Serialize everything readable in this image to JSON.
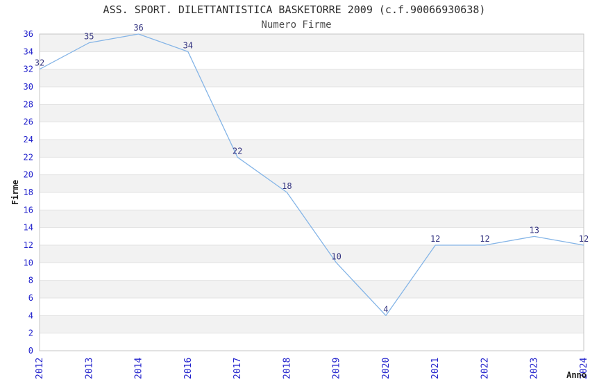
{
  "chart_data": {
    "type": "line",
    "title": "ASS. SPORT. DILETTANTISTICA BASKETORRE 2009 (c.f.90066930638)",
    "subtitle": "Numero Firme",
    "xlabel": "Anno",
    "ylabel": "Firme",
    "categories": [
      "2012",
      "2013",
      "2014",
      "2016",
      "2017",
      "2018",
      "2019",
      "2020",
      "2021",
      "2022",
      "2023",
      "2024"
    ],
    "values": [
      32,
      35,
      36,
      34,
      22,
      18,
      10,
      4,
      12,
      12,
      13,
      12
    ],
    "ylim": [
      0,
      36
    ],
    "ytick_step": 2,
    "grid": "alternating-horizontal-bands",
    "legend": "none",
    "point_labels_shown": true
  },
  "theme": {
    "background": "#ffffff",
    "band_fill": "#f2f2f2",
    "gridline": "#e2e2e2",
    "plot_border": "#c6c6c6",
    "line": "#85b5e7",
    "tick_label": "#2121cc",
    "data_label": "#333380",
    "title_color": "#2e2e2e",
    "subtitle_color": "#4d4d4d",
    "axis_label_color": "#1a1a1a"
  }
}
